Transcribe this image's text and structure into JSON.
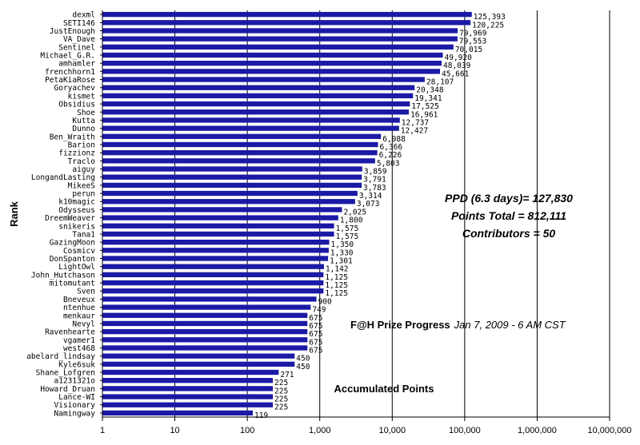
{
  "chart_data": {
    "type": "bar",
    "orientation": "horizontal",
    "x_scale": "log",
    "xlim": [
      1,
      10000000
    ],
    "grid": "vertical major gridlines",
    "bar_color": "#1a1aa6",
    "ylabel": "Rank",
    "xlabel": "",
    "xticks": [
      "1",
      "10",
      "100",
      "1,000",
      "10,000",
      "100,000",
      "1,000,000",
      "10,000,000"
    ],
    "title": "F@H Prize Progress",
    "subtitle": "Jan 7, 2009 - 6 AM CST",
    "annotations": [
      "PPD (6.3 days)= 127,830",
      "Points Total = 812,111",
      "Contributors = 50"
    ],
    "series_caption": "Accumulated Points",
    "categories": [
      "dexml",
      "SETI146",
      "JustEnough",
      "VA_Dave",
      "Sentinel",
      "Michael_G.R.",
      "amhamler",
      "frenchhorn1",
      "PetaKiaRose",
      "Goryachev",
      "kismet",
      "Obsidius",
      "Shoe",
      "Kutta",
      "Dunno",
      "Ben_Wraith",
      "Barion",
      "fizzionz",
      "Traclo",
      "aiguy",
      "LongandLasting",
      "MikeeS",
      "perun",
      "k10magic",
      "Odysseus",
      "DreemWeaver",
      "snikeris",
      "Tana1",
      "GazingMoon",
      "Cosmicv",
      "DonSpanton",
      "LightOwl",
      "John_Hutchason",
      "mitomutant",
      "Sven",
      "Bneveux",
      "ntenhue",
      "menkaur",
      "Nevyl",
      "Ravenhearte",
      "vgamer1",
      "west468",
      "abelard_lindsay",
      "Kyle6suk",
      "Shane_Lofgren",
      "a1231321o",
      "Howard_Druan",
      "Lance-WI",
      "Visionary",
      "Namingway"
    ],
    "values": [
      125393,
      120225,
      79969,
      79553,
      70015,
      49920,
      48039,
      45661,
      28107,
      20348,
      19341,
      17525,
      16961,
      12737,
      12427,
      6988,
      6366,
      6226,
      5803,
      3859,
      3791,
      3783,
      3314,
      3073,
      2025,
      1800,
      1575,
      1575,
      1350,
      1330,
      1301,
      1142,
      1125,
      1125,
      1125,
      900,
      749,
      675,
      675,
      675,
      675,
      675,
      450,
      450,
      271,
      225,
      225,
      225,
      225,
      119
    ],
    "value_labels": [
      "125,393",
      "120,225",
      "79,969",
      "79,553",
      "70,015",
      "49,920",
      "48,039",
      "45,661",
      "28,107",
      "20,348",
      "19,341",
      "17,525",
      "16,961",
      "12,737",
      "12,427",
      "6,988",
      "6,366",
      "6,226",
      "5,803",
      "3,859",
      "3,791",
      "3,783",
      "3,314",
      "3,073",
      "2,025",
      "1,800",
      "1,575",
      "1,575",
      "1,350",
      "1,330",
      "1,301",
      "1,142",
      "1,125",
      "1,125",
      "1,125",
      "900",
      "749",
      "675",
      "675",
      "675",
      "675",
      "675",
      "450",
      "450",
      "271",
      "225",
      "225",
      "225",
      "225",
      "119"
    ]
  }
}
